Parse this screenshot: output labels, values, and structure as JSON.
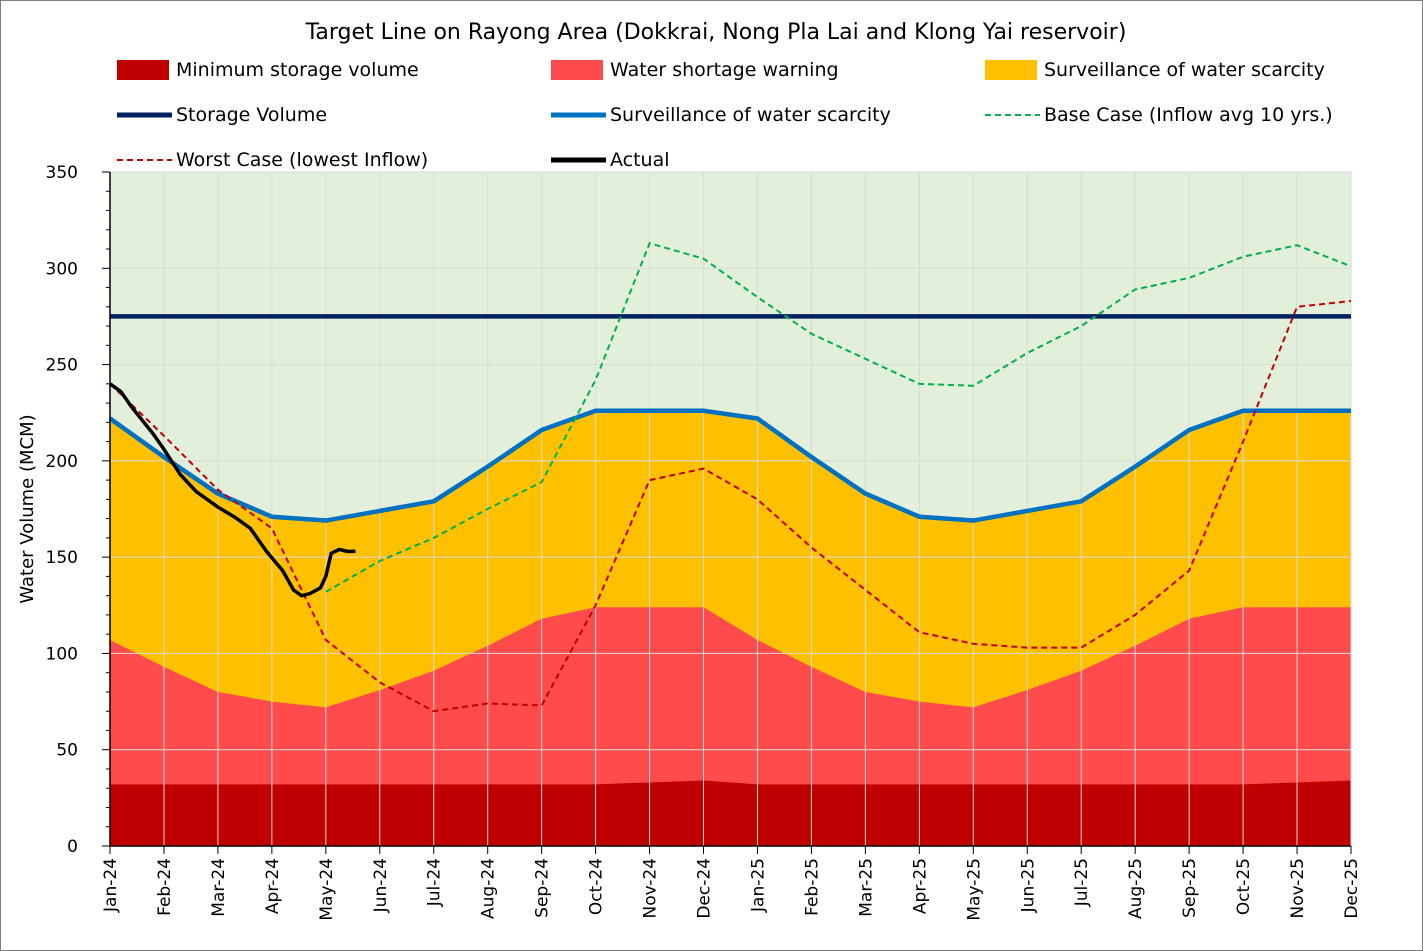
{
  "chart_data": {
    "type": "area",
    "title": "Target Line on Rayong Area (Dokkrai, Nong Pla Lai and Klong Yai reservoir)",
    "xlabel": "",
    "ylabel": "Water Volume (MCM)",
    "ylim": [
      0,
      350
    ],
    "yticks": [
      0,
      50,
      100,
      150,
      200,
      250,
      300,
      350
    ],
    "categories": [
      "Jan-24",
      "Feb-24",
      "Mar-24",
      "Apr-24",
      "May-24",
      "Jun-24",
      "Jul-24",
      "Aug-24",
      "Sep-24",
      "Oct-24",
      "Nov-24",
      "Dec-24",
      "Jan-25",
      "Feb-25",
      "Mar-25",
      "Apr-25",
      "May-25",
      "Jun-25",
      "Jul-25",
      "Aug-25",
      "Sep-25",
      "Oct-25",
      "Nov-25",
      "Dec-25"
    ],
    "grid": true,
    "legend_position": "top",
    "background_color": "#e2efda",
    "series": [
      {
        "name": "Minimum storage volume",
        "kind": "area",
        "color": "#c00000",
        "values": [
          32,
          32,
          32,
          32,
          32,
          32,
          32,
          32,
          32,
          32,
          33,
          34,
          32,
          32,
          32,
          32,
          32,
          32,
          32,
          32,
          32,
          32,
          33,
          34
        ]
      },
      {
        "name": "Water shortage warning",
        "kind": "area",
        "color": "#ff4b4b",
        "values": [
          107,
          93,
          80,
          75,
          72,
          81,
          91,
          104,
          118,
          124,
          124,
          124,
          107,
          93,
          80,
          75,
          72,
          81,
          91,
          104,
          118,
          124,
          124,
          124
        ]
      },
      {
        "name": "Surveillance of water scarcity",
        "kind": "area",
        "color": "#ffc000",
        "values": [
          222,
          202,
          183,
          171,
          169,
          174,
          179,
          197,
          216,
          226,
          226,
          226,
          222,
          202,
          183,
          171,
          169,
          174,
          179,
          197,
          216,
          226,
          226,
          226
        ]
      },
      {
        "name": "Storage Volume",
        "kind": "line",
        "color": "#002060",
        "values": [
          275,
          275,
          275,
          275,
          275,
          275,
          275,
          275,
          275,
          275,
          275,
          275,
          275,
          275,
          275,
          275,
          275,
          275,
          275,
          275,
          275,
          275,
          275,
          275
        ]
      },
      {
        "name": "Surveillance of water scarcity",
        "kind": "line",
        "color": "#0070c0",
        "values": [
          222,
          202,
          183,
          171,
          169,
          174,
          179,
          197,
          216,
          226,
          226,
          226,
          222,
          202,
          183,
          171,
          169,
          174,
          179,
          197,
          216,
          226,
          226,
          226
        ]
      },
      {
        "name": "Base Case (Inflow avg 10 yrs.)",
        "kind": "dashed",
        "color": "#00b050",
        "values": [
          null,
          null,
          null,
          null,
          132,
          148,
          160,
          175,
          189,
          242,
          313,
          305,
          285,
          266,
          253,
          240,
          239,
          256,
          270,
          289,
          295,
          306,
          312,
          301
        ]
      },
      {
        "name": "Worst Case (lowest Inflow)",
        "kind": "dashed",
        "color": "#c00000",
        "values": [
          240,
          213,
          185,
          165,
          107,
          85,
          70,
          74,
          73,
          125,
          190,
          196,
          180,
          155,
          133,
          111,
          105,
          103,
          103,
          120,
          143,
          210,
          280,
          283
        ]
      },
      {
        "name": "Actual",
        "kind": "line",
        "color": "#000000",
        "points": [
          [
            0,
            240
          ],
          [
            0.2,
            236
          ],
          [
            0.4,
            228
          ],
          [
            0.6,
            221
          ],
          [
            0.8,
            214
          ],
          [
            1.0,
            206
          ],
          [
            1.3,
            193
          ],
          [
            1.6,
            184
          ],
          [
            1.8,
            180
          ],
          [
            2.0,
            176
          ],
          [
            2.3,
            171
          ],
          [
            2.6,
            165
          ],
          [
            2.9,
            153
          ],
          [
            3.2,
            143
          ],
          [
            3.4,
            133
          ],
          [
            3.55,
            130
          ],
          [
            3.7,
            131
          ],
          [
            3.9,
            134
          ],
          [
            4.0,
            140
          ],
          [
            4.1,
            152
          ],
          [
            4.25,
            154
          ],
          [
            4.4,
            153
          ],
          [
            4.55,
            153
          ]
        ]
      }
    ]
  }
}
